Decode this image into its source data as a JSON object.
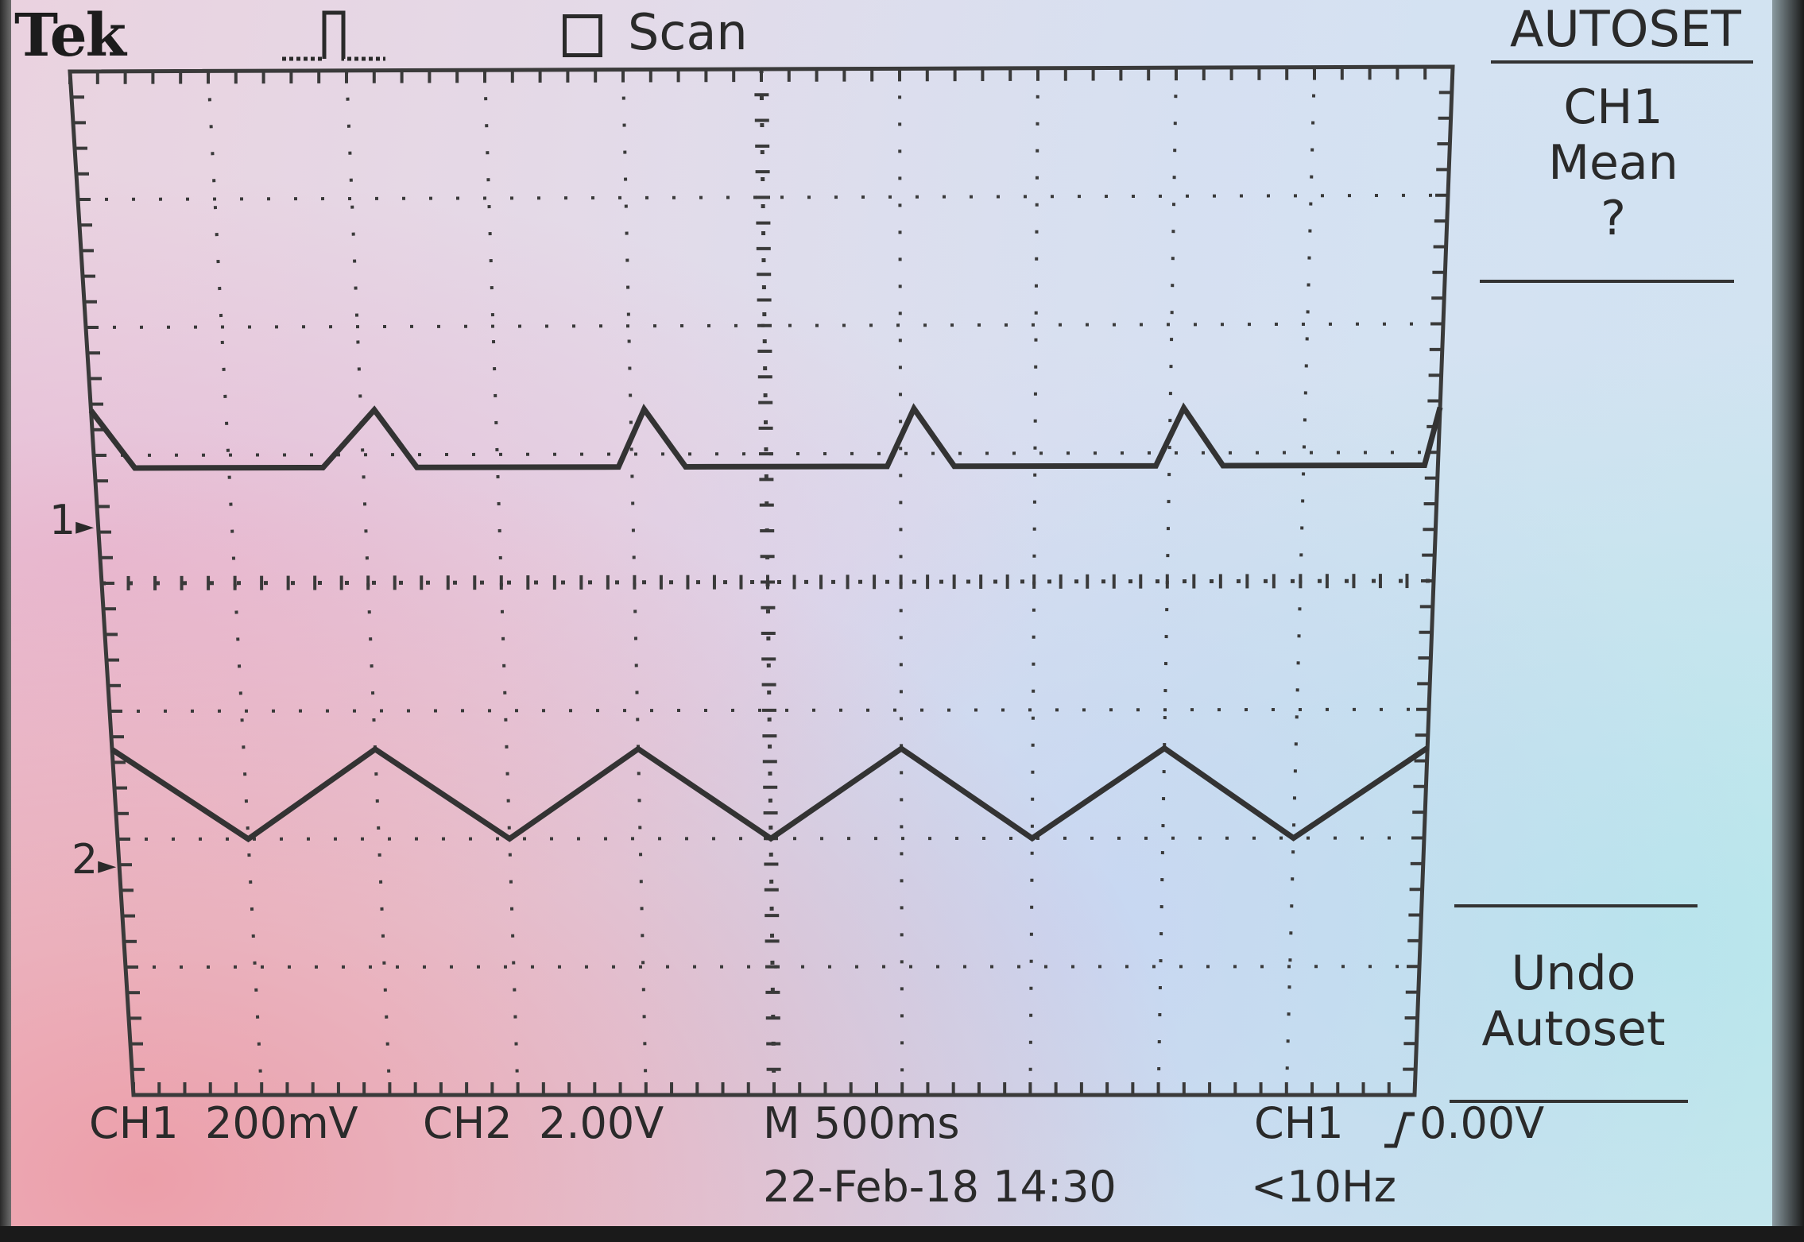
{
  "header": {
    "brand": "Tek",
    "trigger_status_icon": "pulse-icon",
    "acquisition_mode": "Scan",
    "mode_box_icon": "empty-square-icon"
  },
  "side_menu": {
    "title": "AUTOSET",
    "items": [
      {
        "lines": [
          "CH1",
          "Mean",
          "?"
        ]
      },
      {
        "lines": [
          "Undo",
          "Autoset"
        ]
      }
    ]
  },
  "channel_markers": {
    "ch1": "1",
    "ch2": "2"
  },
  "status_bar": {
    "ch1_label": "CH1",
    "ch1_scale": "200mV",
    "ch2_label": "CH2",
    "ch2_scale": "2.00V",
    "timebase": "M 500ms",
    "trigger_source": "CH1",
    "trigger_slope_icon": "rising-edge-icon",
    "trigger_level": "0.00V",
    "date_time": "22-Feb-18 14:30",
    "frequency": "<10Hz"
  },
  "display": {
    "divisions_x": 10,
    "divisions_y": 8,
    "trace_color": "#333333",
    "grid_color": "#3a3a3a"
  },
  "waveforms": {
    "time_per_div_s": 0.5,
    "ch1": {
      "name": "CH1",
      "volts_per_div": 0.2,
      "points_t_s": [
        0,
        0.15,
        0.85,
        1.05,
        1.2,
        1.95,
        2.05,
        2.2,
        2.95,
        3.05,
        3.2,
        3.95,
        4.05,
        4.2,
        4.95,
        5.0
      ],
      "points_v": [
        0.06,
        -0.03,
        -0.03,
        0.06,
        -0.03,
        -0.03,
        0.06,
        -0.03,
        -0.03,
        0.06,
        -0.03,
        -0.03,
        0.06,
        -0.03,
        -0.03,
        0.06
      ]
    },
    "ch2": {
      "name": "CH2",
      "volts_per_div": 2.0,
      "points_t_s": [
        0,
        0.5,
        1.0,
        1.5,
        2.0,
        2.5,
        3.0,
        3.5,
        4.0,
        4.5,
        5.0
      ],
      "points_v": [
        0.6,
        -0.8,
        0.6,
        -0.8,
        0.6,
        -0.8,
        0.6,
        -0.8,
        0.6,
        -0.8,
        0.6
      ]
    }
  }
}
